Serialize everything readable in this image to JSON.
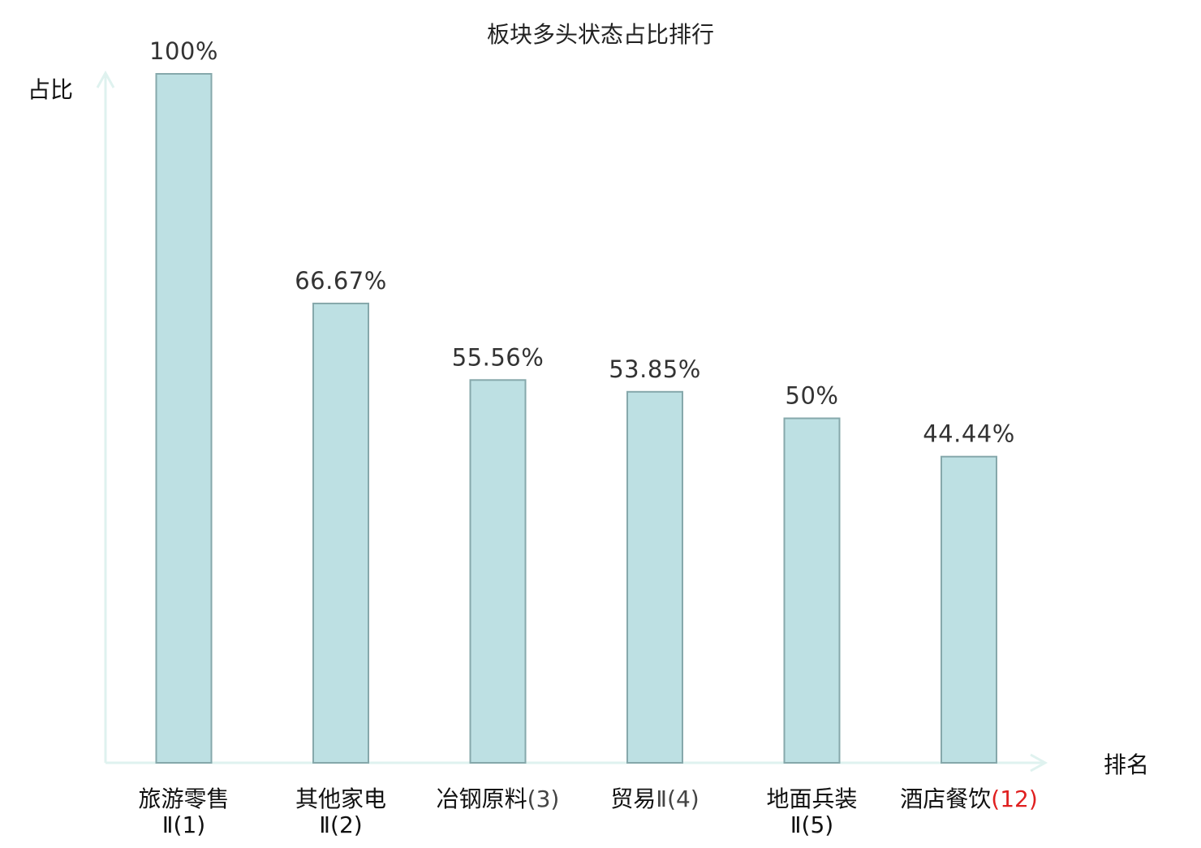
{
  "chart_data": {
    "type": "bar",
    "title": "板块多头状态占比排行",
    "ylabel": "占比",
    "xlabel": "排名",
    "ylim": [
      0,
      100
    ],
    "grid": false,
    "legend": "none",
    "categories": [
      {
        "name": "旅游零售",
        "rank_text": "Ⅱ(1)",
        "highlight": false
      },
      {
        "name": "其他家电",
        "rank_text": "Ⅱ(2)",
        "highlight": false
      },
      {
        "name": "冶钢原料",
        "rank_text": "(3)",
        "highlight": false
      },
      {
        "name": "贸易",
        "rank_text": "Ⅱ(4)",
        "highlight": false
      },
      {
        "name": "地面兵装",
        "rank_text": "Ⅱ(5)",
        "highlight": false
      },
      {
        "name": "酒店餐饮",
        "rank_text": "(12)",
        "highlight": true
      }
    ],
    "values": [
      100,
      66.67,
      55.56,
      53.85,
      50,
      44.44
    ],
    "value_labels": [
      "100%",
      "66.67%",
      "55.56%",
      "53.85%",
      "50%",
      "44.44%"
    ],
    "colors": {
      "bar_fill": "#bde0e3",
      "bar_stroke": "#86a8ab",
      "axis": "#dff2ef",
      "highlight_text": "#e02020"
    }
  }
}
